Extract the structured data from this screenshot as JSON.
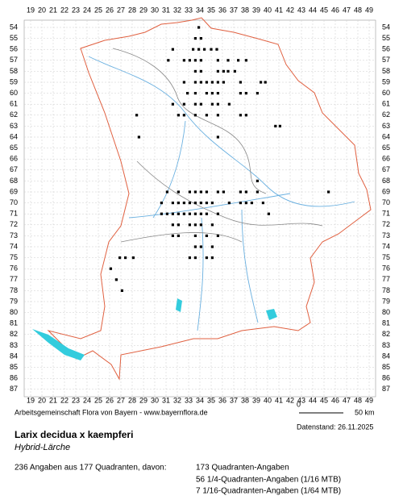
{
  "map_data": {
    "type": "map",
    "x_labels": [
      19,
      20,
      21,
      22,
      23,
      24,
      25,
      26,
      27,
      28,
      29,
      30,
      31,
      32,
      33,
      34,
      35,
      36,
      37,
      38,
      39,
      40,
      41,
      42,
      43,
      44,
      45,
      46,
      47,
      48,
      49
    ],
    "y_labels": [
      54,
      55,
      56,
      57,
      58,
      59,
      60,
      61,
      62,
      63,
      64,
      65,
      66,
      67,
      68,
      69,
      70,
      71,
      72,
      73,
      74,
      75,
      76,
      77,
      78,
      79,
      80,
      81,
      82,
      83,
      84,
      85,
      86,
      87
    ],
    "records": [
      [
        33.9,
        54
      ],
      [
        33.6,
        55
      ],
      [
        34.1,
        55
      ],
      [
        31.6,
        56
      ],
      [
        33.4,
        56
      ],
      [
        33.9,
        56
      ],
      [
        34.4,
        56
      ],
      [
        35.0,
        56
      ],
      [
        35.5,
        56
      ],
      [
        31.2,
        57
      ],
      [
        32.6,
        57
      ],
      [
        33.1,
        57
      ],
      [
        33.6,
        57
      ],
      [
        34.1,
        57
      ],
      [
        35.6,
        57
      ],
      [
        36.5,
        57
      ],
      [
        37.4,
        57
      ],
      [
        38.1,
        57
      ],
      [
        33.6,
        58
      ],
      [
        34.1,
        58
      ],
      [
        35.6,
        58
      ],
      [
        36.1,
        58
      ],
      [
        36.5,
        58
      ],
      [
        37.1,
        58
      ],
      [
        32.6,
        59
      ],
      [
        33.6,
        59
      ],
      [
        34.1,
        59
      ],
      [
        34.6,
        59
      ],
      [
        35.1,
        59
      ],
      [
        35.6,
        59
      ],
      [
        36.1,
        59
      ],
      [
        37.6,
        59
      ],
      [
        39.4,
        59
      ],
      [
        39.8,
        59
      ],
      [
        32.9,
        60
      ],
      [
        33.6,
        60
      ],
      [
        34.6,
        60
      ],
      [
        35.1,
        60
      ],
      [
        35.6,
        60
      ],
      [
        37.6,
        60
      ],
      [
        38.1,
        60
      ],
      [
        39.1,
        60
      ],
      [
        31.6,
        61
      ],
      [
        32.6,
        61
      ],
      [
        33.6,
        61
      ],
      [
        34.1,
        61
      ],
      [
        35.1,
        61
      ],
      [
        35.6,
        61
      ],
      [
        36.6,
        61
      ],
      [
        28.4,
        62
      ],
      [
        32.1,
        62
      ],
      [
        32.6,
        62
      ],
      [
        33.6,
        62
      ],
      [
        34.6,
        62
      ],
      [
        35.6,
        62
      ],
      [
        37.6,
        62
      ],
      [
        38.1,
        62
      ],
      [
        40.7,
        63
      ],
      [
        41.1,
        63
      ],
      [
        28.6,
        64
      ],
      [
        35.6,
        64
      ],
      [
        39.1,
        68
      ],
      [
        31.1,
        69
      ],
      [
        32.1,
        69
      ],
      [
        33.1,
        69
      ],
      [
        33.6,
        69
      ],
      [
        34.1,
        69
      ],
      [
        34.6,
        69
      ],
      [
        35.6,
        69
      ],
      [
        36.1,
        69
      ],
      [
        37.6,
        69
      ],
      [
        38.1,
        69
      ],
      [
        39.1,
        69
      ],
      [
        45.4,
        69
      ],
      [
        30.6,
        70
      ],
      [
        31.6,
        70
      ],
      [
        32.1,
        70
      ],
      [
        32.6,
        70
      ],
      [
        33.1,
        70
      ],
      [
        33.6,
        70
      ],
      [
        34.1,
        70
      ],
      [
        34.6,
        70
      ],
      [
        35.1,
        70
      ],
      [
        36.6,
        70
      ],
      [
        37.6,
        70
      ],
      [
        38.1,
        70
      ],
      [
        38.6,
        70
      ],
      [
        39.6,
        70
      ],
      [
        30.6,
        71
      ],
      [
        31.1,
        71
      ],
      [
        31.6,
        71
      ],
      [
        32.1,
        71
      ],
      [
        32.6,
        71
      ],
      [
        33.1,
        71
      ],
      [
        33.6,
        71
      ],
      [
        34.1,
        71
      ],
      [
        34.6,
        71
      ],
      [
        35.6,
        71
      ],
      [
        40.1,
        71
      ],
      [
        31.6,
        72
      ],
      [
        32.1,
        72
      ],
      [
        33.1,
        72
      ],
      [
        33.6,
        72
      ],
      [
        34.1,
        72
      ],
      [
        35.1,
        72
      ],
      [
        31.6,
        73
      ],
      [
        32.1,
        73
      ],
      [
        33.6,
        73
      ],
      [
        34.6,
        73
      ],
      [
        35.6,
        73
      ],
      [
        33.6,
        74
      ],
      [
        34.1,
        74
      ],
      [
        35.1,
        74
      ],
      [
        26.9,
        75
      ],
      [
        27.4,
        75
      ],
      [
        28.1,
        75
      ],
      [
        33.1,
        75
      ],
      [
        33.6,
        75
      ],
      [
        34.6,
        75
      ],
      [
        35.1,
        75
      ],
      [
        26.1,
        76
      ],
      [
        26.6,
        77
      ],
      [
        27.1,
        78
      ]
    ]
  },
  "scale": {
    "start": "0",
    "end": "50 km"
  },
  "credit": "Arbeitsgemeinschaft Flora von Bayern - www.bayernflora.de",
  "date": "Datenstand: 26.11.2025",
  "title": "Larix decidua x kaempferi",
  "subtitle": "Hybrid-Lärche",
  "summary": "236 Angaben aus 177 Quadranten, davon:",
  "counts": [
    "173 Quadranten-Angaben",
    "56 1/4-Quadranten-Angaben (1/16 MTB)",
    "7 1/16-Quadranten-Angaben (1/64 MTB)"
  ]
}
